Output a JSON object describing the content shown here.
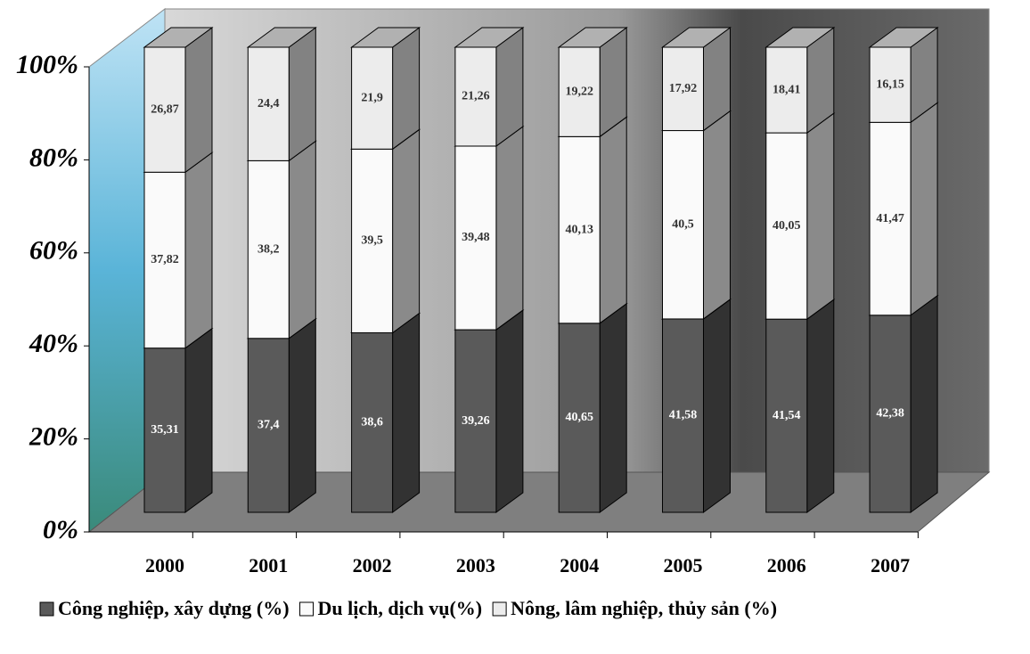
{
  "chart_data": {
    "type": "stacked-bar-3d",
    "categories": [
      "2000",
      "2001",
      "2002",
      "2003",
      "2004",
      "2005",
      "2006",
      "2007"
    ],
    "series": [
      {
        "name": "Công nghiệp, xây dựng (%)",
        "color": "#5a5a5a",
        "values": [
          35.31,
          37.4,
          38.6,
          39.26,
          40.65,
          41.58,
          41.54,
          42.38
        ],
        "value_labels": [
          "35,31",
          "37,4",
          "38,6",
          "39,26",
          "40,65",
          "41,58",
          "41,54",
          "42,38"
        ]
      },
      {
        "name": "Du lịch, dịch vụ(%)",
        "color": "#fafafa",
        "values": [
          37.82,
          38.2,
          39.5,
          39.48,
          40.13,
          40.5,
          40.05,
          41.47
        ],
        "value_labels": [
          "37,82",
          "38,2",
          "39,5",
          "39,48",
          "40,13",
          "40,5",
          "40,05",
          "41,47"
        ]
      },
      {
        "name": "Nông, lâm nghiệp, thủy sản (%)",
        "color": "#ececec",
        "values": [
          26.87,
          24.4,
          21.9,
          21.26,
          19.22,
          17.92,
          18.41,
          16.15
        ],
        "value_labels": [
          "26,87",
          "24,4",
          "21,9",
          "21,26",
          "19,22",
          "17,92",
          "18,41",
          "16,15"
        ]
      }
    ],
    "ylim": [
      0,
      100
    ],
    "yticks": [
      {
        "value": 0,
        "label": "0%"
      },
      {
        "value": 20,
        "label": "20%"
      },
      {
        "value": 40,
        "label": "40%"
      },
      {
        "value": 60,
        "label": "60%"
      },
      {
        "value": 80,
        "label": "80%"
      },
      {
        "value": 100,
        "label": "100%"
      }
    ],
    "legend": "bottom"
  }
}
